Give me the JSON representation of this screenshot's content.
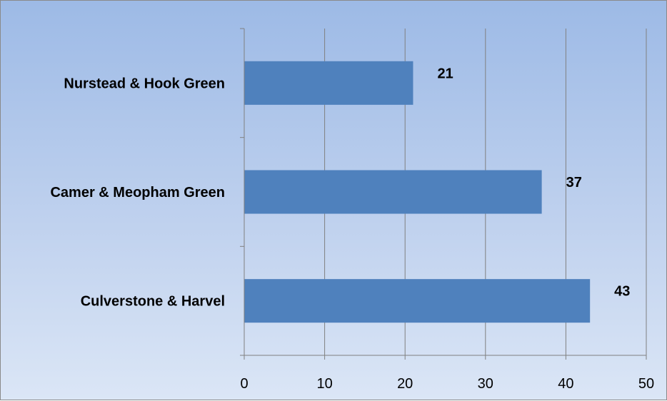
{
  "chart_data": {
    "type": "bar",
    "orientation": "horizontal",
    "categories": [
      "Nurstead & Hook Green",
      "Camer & Meopham Green",
      "Culverstone & Harvel"
    ],
    "values": [
      21,
      37,
      43
    ],
    "data_labels": [
      "21",
      "37",
      "43"
    ],
    "title": "",
    "xlabel": "",
    "ylabel": "",
    "xlim": [
      0,
      50
    ],
    "x_ticks": [
      0,
      10,
      20,
      30,
      40,
      50
    ],
    "x_tick_labels": [
      "0",
      "10",
      "20",
      "30",
      "40",
      "50"
    ],
    "grid": true,
    "legend": "none",
    "colors": {
      "bar": "#4f81bd",
      "grid": "#808080",
      "background_top": "#9dbae6",
      "background_bottom": "#dbe6f6"
    }
  }
}
